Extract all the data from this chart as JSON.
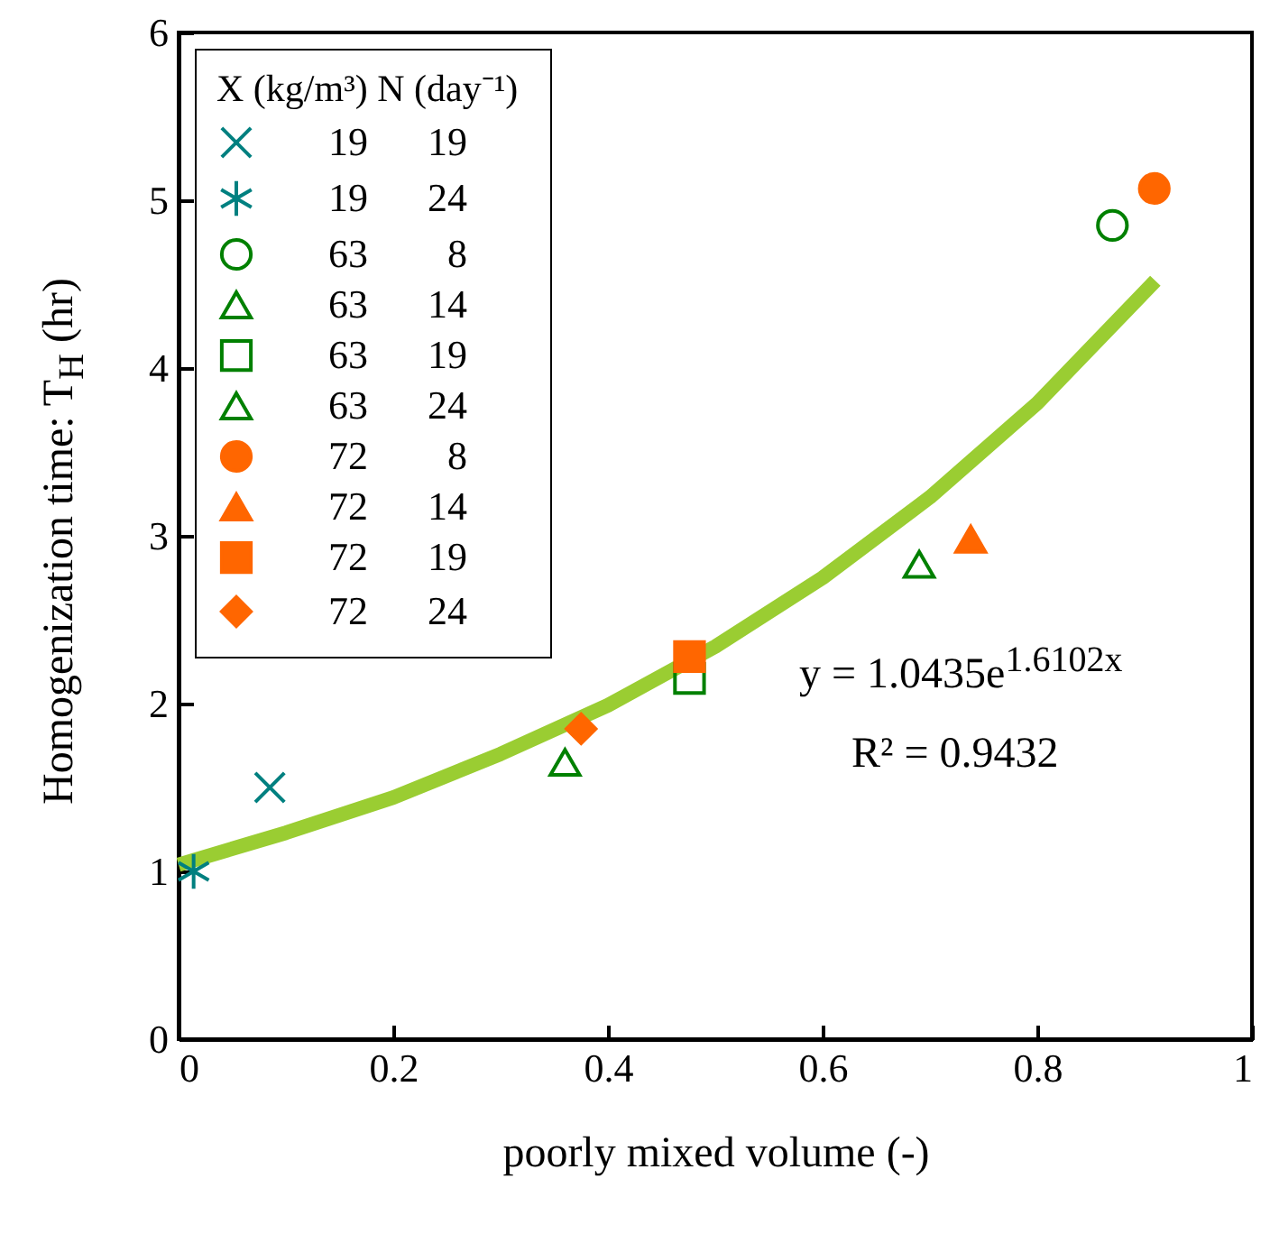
{
  "chart_data": {
    "type": "scatter",
    "xlabel": "poorly mixed volume (-)",
    "ylabel": "Homogenization time: T$_{H}$  (hr)",
    "legend_title": "X (kg/m³)  N (day⁻¹)",
    "legend": "top left",
    "grid": false,
    "xlim": [
      0,
      1
    ],
    "xticks": [
      0,
      0.2,
      0.4,
      0.6,
      0.8,
      1
    ],
    "ylim": [
      0,
      6
    ],
    "yticks": [
      0,
      1,
      2,
      3,
      4,
      5,
      6
    ],
    "annotations": [
      "y = 1.0435e$^{1.6102x}$",
      "R² = 0.9432"
    ],
    "series": [
      {
        "name": "19   19",
        "color": "#008080",
        "marker": "cross",
        "x": [
          0.085
        ],
        "values": [
          1.5
        ]
      },
      {
        "name": "19   24",
        "color": "#008080",
        "x": [
          0.014
        ],
        "values": [
          1.0
        ]
      },
      {
        "name": "63    8",
        "color": "#008000",
        "marker": "circle",
        "x": [
          0.87
        ],
        "values": [
          4.85
        ]
      },
      {
        "name": "63   14",
        "color": "#008000",
        "marker": "triangle",
        "x": [
          0.36
        ],
        "values": [
          1.65
        ]
      },
      {
        "name": "63   19",
        "color": "#008000",
        "marker": "square",
        "x": [
          0.476
        ],
        "values": [
          2.15
        ]
      },
      {
        "name": "63   24",
        "color": "#008000",
        "marker": "triangle",
        "x": [
          0.69
        ],
        "values": [
          2.83
        ]
      },
      {
        "name": "72    8",
        "color": "#ff6600",
        "marker": "circle",
        "x": [
          0.909
        ],
        "values": [
          5.07
        ]
      },
      {
        "name": "72   14",
        "color": "#ff6600",
        "marker": "triangle",
        "x": [
          0.738
        ],
        "values": [
          2.98
        ]
      },
      {
        "name": "72   19",
        "color": "#ff6600",
        "marker": "square",
        "x": [
          0.476
        ],
        "values": [
          2.28
        ]
      },
      {
        "name": "72   24",
        "color": "#ff6600",
        "marker": "diamond",
        "x": [
          0.375
        ],
        "values": [
          1.85
        ]
      },
      {
        "type": "line",
        "color": "#9acd32",
        "line_style": "solid",
        "x": [
          0,
          0.1,
          0.2,
          0.3,
          0.4,
          0.5,
          0.6,
          0.7,
          0.8,
          0.91
        ],
        "values": [
          1.04,
          1.23,
          1.44,
          1.7,
          1.99,
          2.34,
          2.75,
          3.23,
          3.79,
          4.52
        ]
      }
    ]
  }
}
